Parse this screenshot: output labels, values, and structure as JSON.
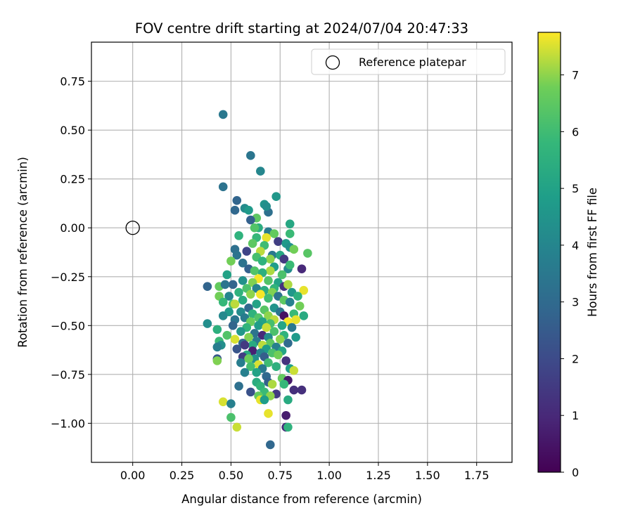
{
  "chart_data": {
    "type": "scatter",
    "title": "FOV centre drift starting at 2024/07/04 20:47:33",
    "xlabel": "Angular distance from reference (arcmin)",
    "ylabel": "Rotation from reference (arcmin)",
    "xlim": [
      -0.21,
      1.93
    ],
    "ylim": [
      -1.2,
      0.95
    ],
    "x_ticks": [
      0.0,
      0.25,
      0.5,
      0.75,
      1.0,
      1.25,
      1.5,
      1.75
    ],
    "x_tick_labels": [
      "0.00",
      "0.25",
      "0.50",
      "0.75",
      "1.00",
      "1.25",
      "1.50",
      "1.75"
    ],
    "y_ticks": [
      0.75,
      0.5,
      0.25,
      0.0,
      -0.25,
      -0.5,
      -0.75,
      -1.0
    ],
    "y_tick_labels": [
      "0.75",
      "0.50",
      "0.25",
      "0.00",
      "−0.25",
      "−0.50",
      "−0.75",
      "−1.00"
    ],
    "grid": true,
    "legend": {
      "location": "top-right",
      "entries": [
        {
          "label": "Reference platepar",
          "marker": "open-circle"
        }
      ]
    },
    "reference_point": {
      "x": 0.0,
      "y": 0.0
    },
    "colorbar": {
      "label": "Hours from first FF file",
      "colormap": "viridis",
      "range": [
        0,
        7.75
      ],
      "ticks": [
        0,
        1,
        2,
        3,
        4,
        5,
        6,
        7
      ],
      "tick_labels": [
        "0",
        "1",
        "2",
        "3",
        "4",
        "5",
        "6",
        "7"
      ]
    },
    "point_fields": [
      "x",
      "y",
      "hours"
    ],
    "points": [
      [
        0.46,
        0.58,
        3.5
      ],
      [
        0.6,
        0.37,
        3.4
      ],
      [
        0.65,
        0.29,
        4.0
      ],
      [
        0.46,
        0.21,
        3.3
      ],
      [
        0.73,
        0.16,
        4.6
      ],
      [
        0.53,
        0.14,
        2.8
      ],
      [
        0.67,
        0.12,
        4.5
      ],
      [
        0.57,
        0.1,
        4.2
      ],
      [
        0.59,
        0.09,
        4.7
      ],
      [
        0.52,
        0.09,
        2.9
      ],
      [
        0.69,
        0.08,
        3.2
      ],
      [
        0.68,
        0.11,
        4.3
      ],
      [
        0.63,
        0.05,
        6.5
      ],
      [
        0.6,
        0.04,
        2.7
      ],
      [
        0.8,
        0.02,
        5.2
      ],
      [
        0.64,
        0.0,
        5.4
      ],
      [
        0.62,
        0.0,
        6.3
      ],
      [
        0.69,
        -0.02,
        3.6
      ],
      [
        0.72,
        -0.03,
        6.6
      ],
      [
        0.8,
        -0.03,
        5.9
      ],
      [
        0.54,
        -0.04,
        5.6
      ],
      [
        0.63,
        -0.05,
        5.8
      ],
      [
        0.68,
        -0.05,
        7.6
      ],
      [
        0.74,
        -0.07,
        1.6
      ],
      [
        0.61,
        -0.08,
        6.5
      ],
      [
        0.78,
        -0.08,
        4.7
      ],
      [
        0.67,
        -0.09,
        6.0
      ],
      [
        0.52,
        -0.11,
        3.2
      ],
      [
        0.58,
        -0.12,
        1.8
      ],
      [
        0.65,
        -0.12,
        7.3
      ],
      [
        0.8,
        -0.1,
        4.4
      ],
      [
        0.82,
        -0.11,
        6.8
      ],
      [
        0.53,
        -0.14,
        3.3
      ],
      [
        0.71,
        -0.14,
        3.5
      ],
      [
        0.75,
        -0.14,
        5.2
      ],
      [
        0.77,
        -0.16,
        1.5
      ],
      [
        0.63,
        -0.15,
        6.1
      ],
      [
        0.89,
        -0.13,
        6.4
      ],
      [
        0.7,
        -0.16,
        7.0
      ],
      [
        0.5,
        -0.17,
        6.8
      ],
      [
        0.56,
        -0.18,
        3.3
      ],
      [
        0.66,
        -0.17,
        5.6
      ],
      [
        0.72,
        -0.2,
        4.8
      ],
      [
        0.59,
        -0.21,
        2.7
      ],
      [
        0.79,
        -0.21,
        4.2
      ],
      [
        0.86,
        -0.21,
        1.0
      ],
      [
        0.62,
        -0.22,
        6.3
      ],
      [
        0.7,
        -0.22,
        7.2
      ],
      [
        0.66,
        -0.23,
        5.5
      ],
      [
        0.76,
        -0.24,
        6.2
      ],
      [
        0.8,
        -0.19,
        5.9
      ],
      [
        0.48,
        -0.24,
        5.0
      ],
      [
        0.64,
        -0.26,
        7.7
      ],
      [
        0.69,
        -0.27,
        6.3
      ],
      [
        0.74,
        -0.28,
        5.0
      ],
      [
        0.56,
        -0.27,
        4.4
      ],
      [
        0.61,
        -0.28,
        6.9
      ],
      [
        0.51,
        -0.29,
        2.8
      ],
      [
        0.77,
        -0.3,
        1.3
      ],
      [
        0.72,
        -0.31,
        5.7
      ],
      [
        0.79,
        -0.29,
        7.2
      ],
      [
        0.38,
        -0.3,
        2.8
      ],
      [
        0.44,
        -0.3,
        6.6
      ],
      [
        0.47,
        -0.29,
        3.4
      ],
      [
        0.58,
        -0.31,
        6.2
      ],
      [
        0.63,
        -0.31,
        3.9
      ],
      [
        0.67,
        -0.32,
        5.4
      ],
      [
        0.87,
        -0.32,
        7.6
      ],
      [
        0.54,
        -0.33,
        5.6
      ],
      [
        0.71,
        -0.33,
        6.9
      ],
      [
        0.81,
        -0.33,
        4.6
      ],
      [
        0.6,
        -0.34,
        7.0
      ],
      [
        0.65,
        -0.34,
        7.7
      ],
      [
        0.74,
        -0.35,
        3.3
      ],
      [
        0.49,
        -0.35,
        4.0
      ],
      [
        0.84,
        -0.35,
        5.5
      ],
      [
        0.44,
        -0.35,
        6.8
      ],
      [
        0.56,
        -0.37,
        5.3
      ],
      [
        0.69,
        -0.36,
        6.0
      ],
      [
        0.77,
        -0.37,
        6.5
      ],
      [
        0.51,
        -0.39,
        6.2
      ],
      [
        0.63,
        -0.39,
        5.0
      ],
      [
        0.8,
        -0.38,
        3.8
      ],
      [
        0.46,
        -0.38,
        5.8
      ],
      [
        0.59,
        -0.41,
        2.9
      ],
      [
        0.72,
        -0.41,
        4.5
      ],
      [
        0.85,
        -0.4,
        6.8
      ],
      [
        0.52,
        -0.39,
        7.3
      ],
      [
        0.67,
        -0.42,
        6.4
      ],
      [
        0.75,
        -0.43,
        3.4
      ],
      [
        0.55,
        -0.43,
        4.2
      ],
      [
        0.49,
        -0.43,
        4.7
      ],
      [
        0.61,
        -0.44,
        5.6
      ],
      [
        0.69,
        -0.45,
        7.0
      ],
      [
        0.82,
        -0.44,
        5.9
      ],
      [
        0.64,
        -0.46,
        6.3
      ],
      [
        0.77,
        -0.45,
        0.4
      ],
      [
        0.46,
        -0.45,
        4.1
      ],
      [
        0.57,
        -0.46,
        3.6
      ],
      [
        0.72,
        -0.47,
        7.3
      ],
      [
        0.87,
        -0.45,
        5.3
      ],
      [
        0.52,
        -0.47,
        3.4
      ],
      [
        0.66,
        -0.48,
        5.0
      ],
      [
        0.6,
        -0.48,
        6.7
      ],
      [
        0.79,
        -0.48,
        7.7
      ],
      [
        0.83,
        -0.47,
        7.6
      ],
      [
        0.7,
        -0.49,
        6.1
      ],
      [
        0.38,
        -0.49,
        4.3
      ],
      [
        0.51,
        -0.5,
        2.8
      ],
      [
        0.76,
        -0.5,
        5.1
      ],
      [
        0.64,
        -0.5,
        4.8
      ],
      [
        0.58,
        -0.51,
        5.7
      ],
      [
        0.68,
        -0.51,
        7.4
      ],
      [
        0.81,
        -0.51,
        3.5
      ],
      [
        0.43,
        -0.52,
        5.5
      ],
      [
        0.55,
        -0.53,
        4.6
      ],
      [
        0.72,
        -0.53,
        6.2
      ],
      [
        0.62,
        -0.54,
        3.3
      ],
      [
        0.77,
        -0.55,
        5.6
      ],
      [
        0.66,
        -0.55,
        1.0
      ],
      [
        0.48,
        -0.55,
        6.3
      ],
      [
        0.59,
        -0.56,
        6.9
      ],
      [
        0.69,
        -0.56,
        4.2
      ],
      [
        0.83,
        -0.56,
        4.7
      ],
      [
        0.75,
        -0.57,
        7.0
      ],
      [
        0.52,
        -0.57,
        7.5
      ],
      [
        0.63,
        -0.58,
        3.6
      ],
      [
        0.44,
        -0.58,
        5.9
      ],
      [
        0.56,
        -0.59,
        2.9
      ],
      [
        0.7,
        -0.59,
        6.5
      ],
      [
        0.79,
        -0.59,
        3.0
      ],
      [
        0.61,
        -0.6,
        5.3
      ],
      [
        0.66,
        -0.6,
        7.3
      ],
      [
        0.45,
        -0.6,
        4.3
      ],
      [
        0.57,
        -0.6,
        1.5
      ],
      [
        0.73,
        -0.61,
        3.8
      ],
      [
        0.43,
        -0.61,
        3.7
      ],
      [
        0.53,
        -0.62,
        2.3
      ],
      [
        0.68,
        -0.62,
        4.8
      ],
      [
        0.61,
        -0.63,
        0.8
      ],
      [
        0.76,
        -0.63,
        5.1
      ],
      [
        0.65,
        -0.64,
        4.0
      ],
      [
        0.71,
        -0.64,
        6.2
      ],
      [
        0.58,
        -0.65,
        5.3
      ],
      [
        0.56,
        -0.66,
        1.6
      ],
      [
        0.74,
        -0.65,
        6.8
      ],
      [
        0.67,
        -0.66,
        2.6
      ],
      [
        0.62,
        -0.67,
        4.4
      ],
      [
        0.43,
        -0.67,
        2.4
      ],
      [
        0.43,
        -0.68,
        6.9
      ],
      [
        0.59,
        -0.67,
        6.7
      ],
      [
        0.78,
        -0.68,
        1.3
      ],
      [
        0.69,
        -0.69,
        6.0
      ],
      [
        0.55,
        -0.69,
        3.7
      ],
      [
        0.64,
        -0.7,
        7.5
      ],
      [
        0.6,
        -0.71,
        6.1
      ],
      [
        0.73,
        -0.71,
        5.5
      ],
      [
        0.66,
        -0.72,
        3.5
      ],
      [
        0.8,
        -0.72,
        4.9
      ],
      [
        0.82,
        -0.73,
        7.4
      ],
      [
        0.57,
        -0.74,
        3.8
      ],
      [
        0.63,
        -0.74,
        5.0
      ],
      [
        0.68,
        -0.76,
        2.9
      ],
      [
        0.76,
        -0.77,
        6.6
      ],
      [
        0.79,
        -0.78,
        0.6
      ],
      [
        0.63,
        -0.79,
        5.4
      ],
      [
        0.69,
        -0.79,
        2.7
      ],
      [
        0.77,
        -0.8,
        5.8
      ],
      [
        0.71,
        -0.8,
        7.2
      ],
      [
        0.54,
        -0.81,
        3.2
      ],
      [
        0.65,
        -0.81,
        5.7
      ],
      [
        0.82,
        -0.83,
        1.2
      ],
      [
        0.86,
        -0.83,
        1.2
      ],
      [
        0.6,
        -0.84,
        2.2
      ],
      [
        0.67,
        -0.84,
        5.9
      ],
      [
        0.73,
        -0.85,
        1.5
      ],
      [
        0.64,
        -0.86,
        6.6
      ],
      [
        0.7,
        -0.86,
        7.0
      ],
      [
        0.79,
        -0.88,
        5.3
      ],
      [
        0.65,
        -0.88,
        7.6
      ],
      [
        0.67,
        -0.88,
        4.8
      ],
      [
        0.46,
        -0.89,
        7.5
      ],
      [
        0.5,
        -0.9,
        3.8
      ],
      [
        0.69,
        -0.95,
        7.6
      ],
      [
        0.78,
        -0.96,
        0.7
      ],
      [
        0.5,
        -0.97,
        6.2
      ],
      [
        0.78,
        -1.02,
        1.1
      ],
      [
        0.53,
        -1.02,
        7.4
      ],
      [
        0.79,
        -1.02,
        5.6
      ],
      [
        0.7,
        -1.11,
        2.9
      ]
    ]
  }
}
